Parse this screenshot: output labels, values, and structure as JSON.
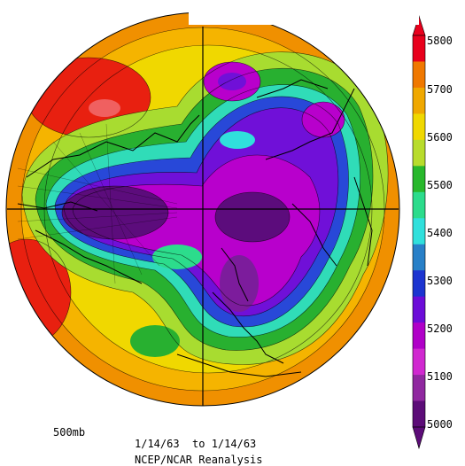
{
  "map": {
    "level": "500mb",
    "date_range": "1/14/63  to 1/14/63",
    "source": "NCEP/NCAR Reanalysis",
    "colorbar": {
      "ticks": [
        "5800",
        "5700",
        "5600",
        "5500",
        "5400",
        "5300",
        "5200",
        "5100",
        "5000"
      ],
      "colors": [
        "#e8001c",
        "#f07800",
        "#f0a800",
        "#f0d800",
        "#b8dc2c",
        "#28b82c",
        "#2cdc8c",
        "#30e0dc",
        "#2880c8",
        "#1c34d0",
        "#6c0cd8",
        "#b000c8",
        "#d028d0",
        "#9028a0",
        "#5c0c78"
      ]
    }
  }
}
